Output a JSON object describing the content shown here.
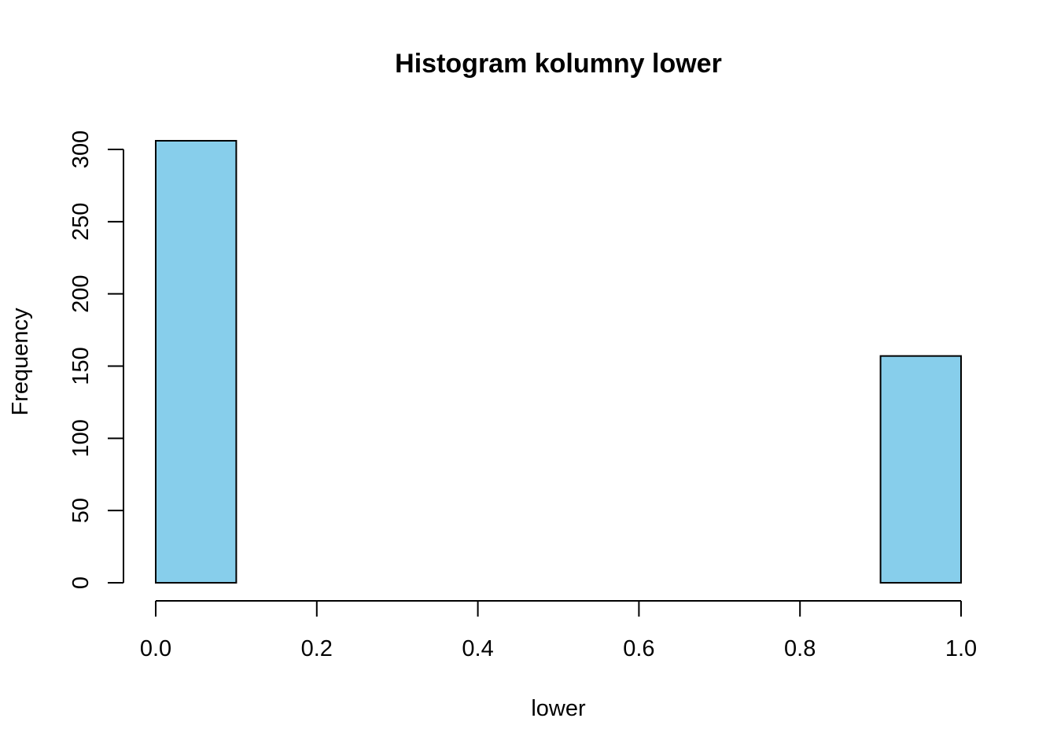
{
  "chart_data": {
    "type": "bar",
    "title": "Histogram kolumny lower",
    "xlabel": "lower",
    "ylabel": "Frequency",
    "bins": [
      {
        "start": 0.0,
        "end": 0.1,
        "count": 306
      },
      {
        "start": 0.1,
        "end": 0.2,
        "count": 0
      },
      {
        "start": 0.2,
        "end": 0.3,
        "count": 0
      },
      {
        "start": 0.3,
        "end": 0.4,
        "count": 0
      },
      {
        "start": 0.4,
        "end": 0.5,
        "count": 0
      },
      {
        "start": 0.5,
        "end": 0.6,
        "count": 0
      },
      {
        "start": 0.6,
        "end": 0.7,
        "count": 0
      },
      {
        "start": 0.7,
        "end": 0.8,
        "count": 0
      },
      {
        "start": 0.8,
        "end": 0.9,
        "count": 0
      },
      {
        "start": 0.9,
        "end": 1.0,
        "count": 157
      }
    ],
    "x_ticks": [
      0.0,
      0.2,
      0.4,
      0.6,
      0.8,
      1.0
    ],
    "x_tick_labels": [
      "0.0",
      "0.2",
      "0.4",
      "0.6",
      "0.8",
      "1.0"
    ],
    "y_ticks": [
      0,
      50,
      100,
      150,
      200,
      250,
      300
    ],
    "y_tick_labels": [
      "0",
      "50",
      "100",
      "150",
      "200",
      "250",
      "300"
    ],
    "xlim": [
      0.0,
      1.0
    ],
    "ylim": [
      0,
      300
    ],
    "bar_color": "#87CEEB",
    "edge_color": "#000000",
    "grid": false,
    "legend": "none"
  }
}
